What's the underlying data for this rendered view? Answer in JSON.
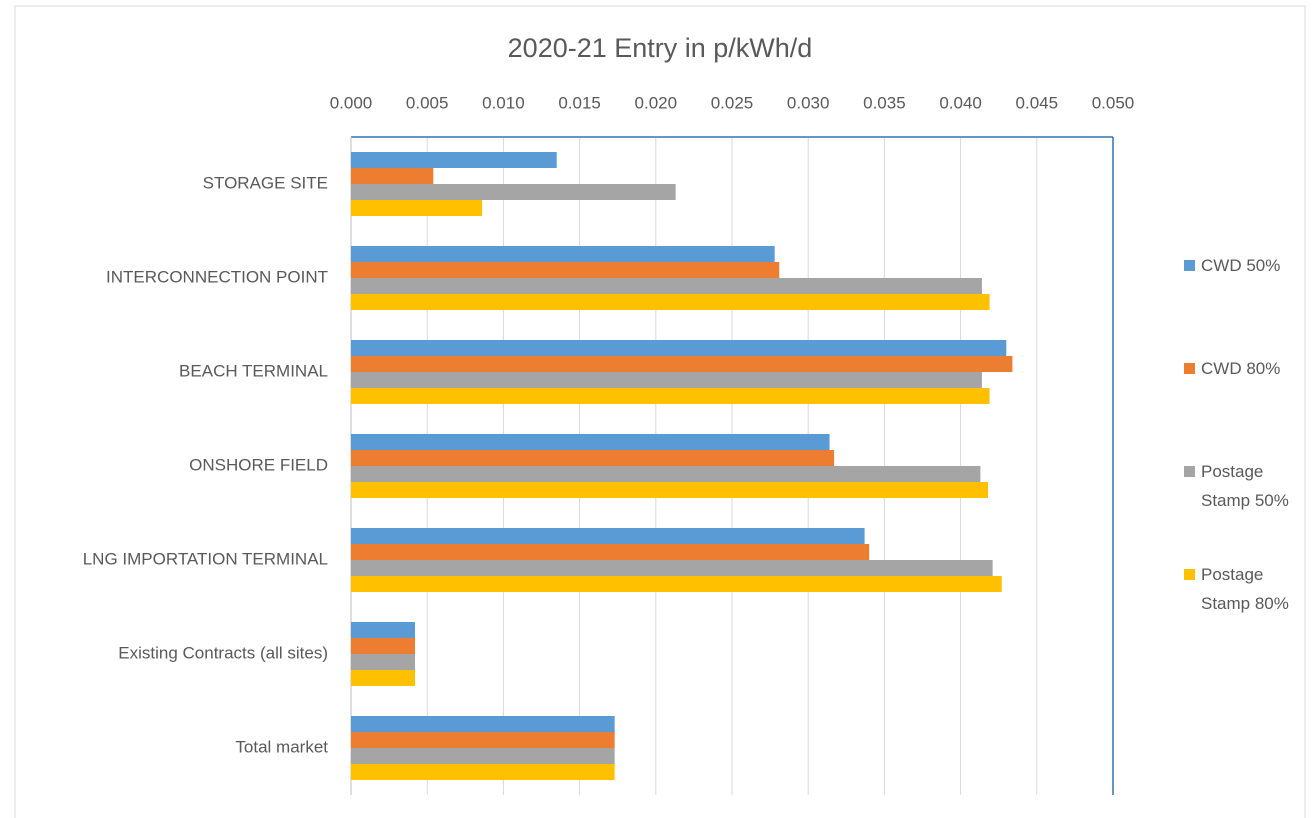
{
  "chart_data": {
    "type": "hbar",
    "title": "2020-21 Entry in p/kWh/d",
    "categories": [
      "STORAGE SITE",
      "INTERCONNECTION POINT",
      "BEACH TERMINAL",
      "ONSHORE FIELD",
      "LNG IMPORTATION TERMINAL",
      "Existing Contracts (all sites)",
      "Total market"
    ],
    "series": [
      {
        "name": "CWD 50%",
        "color": "#5b9bd5",
        "values": [
          0.0135,
          0.0278,
          0.043,
          0.0314,
          0.0337,
          0.0042,
          0.0173
        ]
      },
      {
        "name": "CWD 80%",
        "color": "#ed7d31",
        "values": [
          0.0054,
          0.0281,
          0.0434,
          0.0317,
          0.034,
          0.0042,
          0.0173
        ]
      },
      {
        "name": "Postage Stamp 50%",
        "color": "#a5a5a5",
        "values": [
          0.0213,
          0.0414,
          0.0414,
          0.0413,
          0.0421,
          0.0042,
          0.0173
        ]
      },
      {
        "name": "Postage Stamp 80%",
        "color": "#ffc000",
        "values": [
          0.0086,
          0.0419,
          0.0419,
          0.0418,
          0.0427,
          0.0042,
          0.0173
        ]
      }
    ],
    "xlim": [
      0,
      0.05
    ],
    "xticks": [
      {
        "value": 0,
        "label": "0.000"
      },
      {
        "value": 0.005,
        "label": "0.005"
      },
      {
        "value": 0.01,
        "label": "0.010"
      },
      {
        "value": 0.015,
        "label": "0.015"
      },
      {
        "value": 0.02,
        "label": "0.020"
      },
      {
        "value": 0.025,
        "label": "0.025"
      },
      {
        "value": 0.03,
        "label": "0.030"
      },
      {
        "value": 0.035,
        "label": "0.035"
      },
      {
        "value": 0.04,
        "label": "0.040"
      },
      {
        "value": 0.045,
        "label": "0.045"
      },
      {
        "value": 0.05,
        "label": "0.050"
      }
    ],
    "grid": true,
    "legend": "right"
  }
}
